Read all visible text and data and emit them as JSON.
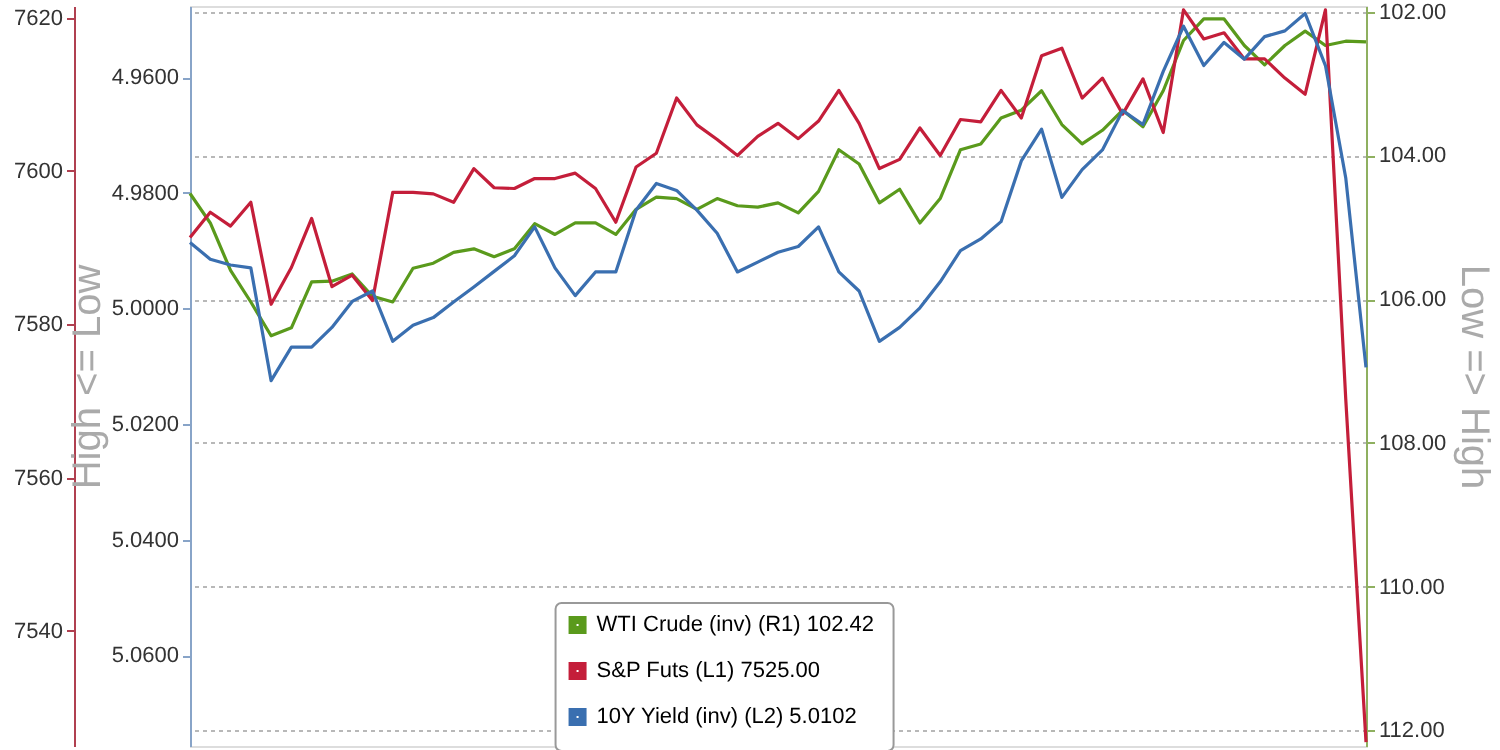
{
  "chart_data": {
    "type": "line",
    "y3label": "High <= Low",
    "y2label": "Low => High",
    "categories": [
      null,
      null,
      null,
      null,
      null,
      null,
      null,
      null,
      null,
      null,
      null,
      null,
      null,
      null,
      null,
      null,
      null,
      null,
      null,
      null,
      null,
      null,
      null,
      null,
      null,
      null,
      null,
      null,
      null,
      null,
      null,
      null,
      null,
      null,
      null,
      null,
      null,
      null,
      null,
      null,
      null,
      null,
      null,
      null,
      null,
      null,
      null,
      null,
      null,
      null,
      null,
      null,
      null,
      null,
      null,
      null,
      null,
      null,
      null
    ],
    "ylim": [
      7525,
      7621.5
    ],
    "yticks": [
      7540,
      7560,
      7580,
      7600,
      7620
    ],
    "y2lim": [
      112.22,
      101.92
    ],
    "y2ticks": [
      {
        "value": 102,
        "label": "102.00"
      },
      {
        "value": 104,
        "label": "104.00"
      },
      {
        "value": 106,
        "label": "106.00"
      },
      {
        "value": 108,
        "label": "108.00"
      },
      {
        "value": 110,
        "label": "110.00"
      },
      {
        "value": 112,
        "label": "112.00"
      }
    ],
    "y3lim": [
      5.0757,
      4.9477
    ],
    "y3ticks": [
      {
        "value": 4.96,
        "label": "4.9600"
      },
      {
        "value": 4.98,
        "label": "4.9800"
      },
      {
        "value": 5.0,
        "label": "5.0000"
      },
      {
        "value": 5.02,
        "label": "5.0200"
      },
      {
        "value": 5.04,
        "label": "5.0400"
      },
      {
        "value": 5.06,
        "label": "5.0600"
      }
    ],
    "grid": "y",
    "legend": "bottom",
    "line_style": "solid",
    "series": [
      {
        "name": "WTI Crude (inv) (R1)  102.42",
        "color": "#5a9a1c",
        "axis": "y2",
        "values": [
          104.53,
          104.94,
          105.6,
          106.04,
          106.51,
          106.4,
          105.76,
          105.75,
          105.65,
          105.96,
          106.04,
          105.57,
          105.5,
          105.35,
          105.3,
          105.41,
          105.3,
          104.95,
          105.1,
          104.94,
          104.94,
          105.1,
          104.75,
          104.58,
          104.6,
          104.75,
          104.6,
          104.7,
          104.72,
          104.66,
          104.8,
          104.5,
          103.92,
          104.12,
          104.66,
          104.47,
          104.94,
          104.6,
          103.92,
          103.84,
          103.48,
          103.37,
          103.1,
          103.57,
          103.84,
          103.65,
          103.37,
          103.6,
          103.1,
          102.4,
          102.1,
          102.1,
          102.47,
          102.74,
          102.47,
          102.27,
          102.47,
          102.41,
          102.42
        ]
      },
      {
        "name": "S&P Futs (L1)  7525.00",
        "color": "#c41e3a",
        "axis": "y",
        "values": [
          7591.3,
          7594.6,
          7592.8,
          7595.9,
          7582.6,
          7587.4,
          7593.8,
          7584.9,
          7586.4,
          7583.1,
          7597.2,
          7597.2,
          7597.0,
          7595.9,
          7600.3,
          7597.8,
          7597.7,
          7599.0,
          7599.0,
          7599.7,
          7597.7,
          7593.3,
          7600.5,
          7602.3,
          7609.5,
          7606.0,
          7604.1,
          7602.0,
          7604.5,
          7606.2,
          7604.2,
          7606.5,
          7610.5,
          7606.2,
          7600.3,
          7601.5,
          7605.6,
          7602.0,
          7606.7,
          7606.4,
          7610.5,
          7606.9,
          7615.0,
          7616.0,
          7609.5,
          7612.1,
          7607.4,
          7612.0,
          7605.0,
          7621.0,
          7617.2,
          7618.0,
          7614.6,
          7614.6,
          7612.1,
          7610.0,
          7621.0,
          7570.3,
          7525.5
        ]
      },
      {
        "name": "10Y Yield (inv) (L2)  5.0102",
        "color": "#3a6fb0",
        "axis": "y3",
        "values": [
          4.9886,
          4.9915,
          4.9925,
          4.993,
          5.0125,
          5.0067,
          5.0067,
          5.0033,
          4.9988,
          4.997,
          5.0057,
          5.0029,
          5.0016,
          4.9989,
          4.9963,
          4.9936,
          4.9909,
          4.9859,
          4.993,
          4.9978,
          4.9937,
          4.9937,
          4.983,
          4.9784,
          4.9796,
          4.983,
          4.987,
          4.9937,
          4.992,
          4.9903,
          4.9893,
          4.9859,
          4.9937,
          4.997,
          5.0057,
          5.0033,
          4.9999,
          4.9954,
          4.99,
          4.988,
          4.985,
          4.9745,
          4.969,
          4.9808,
          4.976,
          4.9726,
          4.9658,
          4.9682,
          4.959,
          4.9512,
          4.958,
          4.954,
          4.9569,
          4.953,
          4.952,
          4.949,
          4.958,
          4.9774,
          5.0102
        ]
      }
    ]
  }
}
